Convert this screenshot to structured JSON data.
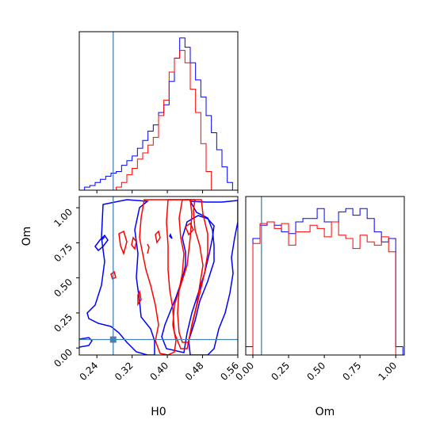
{
  "chart_data": [
    {
      "type": "histogram",
      "panel": "H0 marginal",
      "x": [
        0.2,
        0.212,
        0.224,
        0.236,
        0.248,
        0.26,
        0.272,
        0.284,
        0.296,
        0.308,
        0.32,
        0.332,
        0.344,
        0.356,
        0.368,
        0.38,
        0.392,
        0.404,
        0.416,
        0.428,
        0.44,
        0.452,
        0.464,
        0.476,
        0.488,
        0.5,
        0.512,
        0.524,
        0.536,
        0.548
      ],
      "xlim": [
        0.2,
        0.56
      ],
      "series": [
        {
          "color": "#0000ff",
          "values": [
            0,
            0.02,
            0.03,
            0.05,
            0.07,
            0.09,
            0.11,
            0.12,
            0.16,
            0.19,
            0.22,
            0.27,
            0.32,
            0.38,
            0.42,
            0.5,
            0.55,
            0.7,
            0.85,
            0.98,
            0.92,
            0.82,
            0.71,
            0.6,
            0.48,
            0.37,
            0.26,
            0.15,
            0.05,
            0.0
          ]
        },
        {
          "color": "#ff0000",
          "values": [
            0,
            0.0,
            0.0,
            0.0,
            0.0,
            0.0,
            0.0,
            0.02,
            0.05,
            0.1,
            0.14,
            0.2,
            0.24,
            0.29,
            0.34,
            0.48,
            0.58,
            0.76,
            0.85,
            0.9,
            0.82,
            0.65,
            0.5,
            0.3,
            0.12,
            0.0,
            0.0,
            0.0,
            0.0,
            0.0
          ]
        }
      ],
      "truth": {
        "x": 0.277
      }
    },
    {
      "type": "contour",
      "panel": "H0 vs Om",
      "xlabel": "H0",
      "ylabel": "Om",
      "xlim": [
        0.2,
        0.56
      ],
      "ylim": [
        -0.05,
        1.08
      ],
      "xticks": [
        "0.24",
        "0.32",
        "0.40",
        "0.48",
        "0.56"
      ],
      "yticks": [
        "0.00",
        "0.25",
        "0.50",
        "0.75",
        "1.00"
      ],
      "truth": {
        "x": 0.277,
        "y": 0.06
      }
    },
    {
      "type": "histogram",
      "panel": "Om marginal",
      "xlabel": "Om",
      "xlim": [
        -0.05,
        1.06
      ],
      "xticks": [
        "0.00",
        "0.25",
        "0.50",
        "0.75",
        "1.00"
      ],
      "x": [
        -0.05,
        0.0,
        0.05,
        0.1,
        0.15,
        0.2,
        0.25,
        0.3,
        0.35,
        0.4,
        0.45,
        0.5,
        0.55,
        0.6,
        0.65,
        0.7,
        0.75,
        0.8,
        0.85,
        0.9,
        0.95,
        1.0
      ],
      "series": [
        {
          "color": "#0000ff",
          "values": [
            0.05,
            0.7,
            0.78,
            0.8,
            0.78,
            0.74,
            0.73,
            0.8,
            0.82,
            0.82,
            0.88,
            0.8,
            0.8,
            0.86,
            0.88,
            0.84,
            0.88,
            0.82,
            0.74,
            0.68,
            0.7,
            0.05
          ]
        },
        {
          "color": "#ff0000",
          "values": [
            0.0,
            0.67,
            0.79,
            0.8,
            0.76,
            0.79,
            0.66,
            0.74,
            0.74,
            0.78,
            0.76,
            0.71,
            0.8,
            0.72,
            0.7,
            0.64,
            0.72,
            0.68,
            0.66,
            0.71,
            0.62,
            0.0
          ]
        }
      ],
      "truth": {
        "x": 0.06
      }
    }
  ]
}
